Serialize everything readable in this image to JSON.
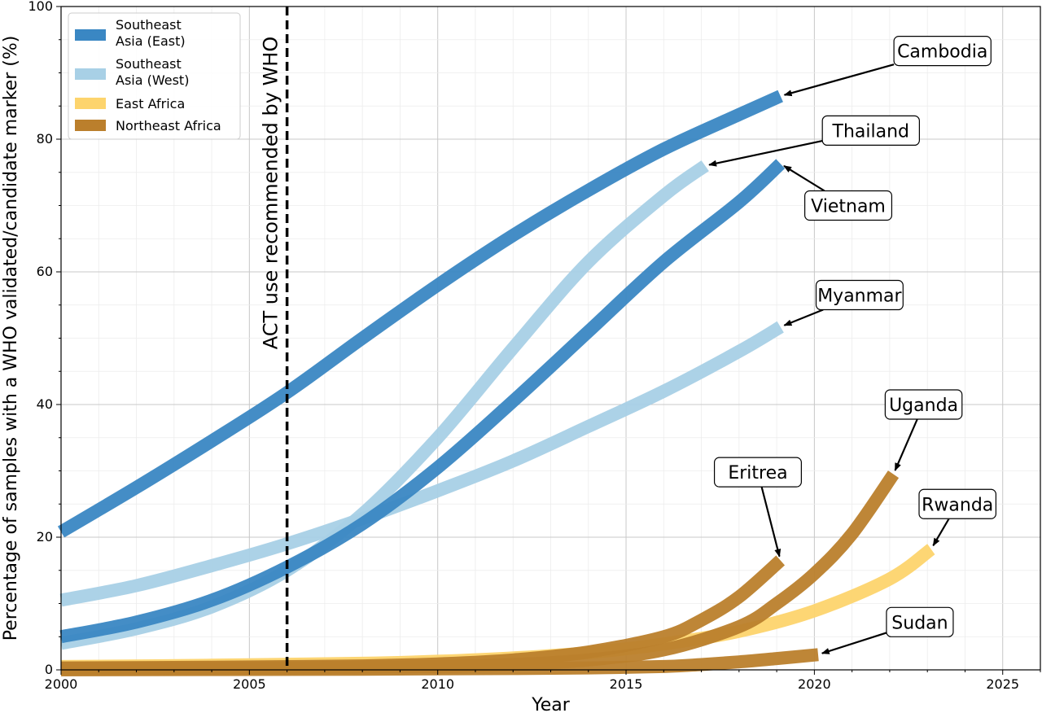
{
  "chart_data": {
    "type": "line",
    "xlabel": "Year",
    "ylabel": "Percentage of samples with a WHO validated/candidate marker (%)",
    "xlim": [
      2000,
      2026
    ],
    "ylim": [
      0,
      100
    ],
    "xticks": [
      2000,
      2005,
      2010,
      2015,
      2020,
      2025
    ],
    "yticks": [
      0,
      20,
      40,
      60,
      80,
      100
    ],
    "grid": true,
    "legend_placement": "top-left",
    "vertical_line": {
      "x": 2006,
      "label": "ACT use recommended by WHO",
      "style": "dashed"
    },
    "legend": [
      {
        "label": "Southeast\nAsia (East)",
        "color": "#3a87c3"
      },
      {
        "label": "Southeast\nAsia (West)",
        "color": "#a8d0e6"
      },
      {
        "label": "East Africa",
        "color": "#fdd46d"
      },
      {
        "label": "Northeast Africa",
        "color": "#bb7f2c"
      }
    ],
    "series": [
      {
        "name": "Cambodia",
        "region": "Southeast Asia (East)",
        "color": "#3a87c3",
        "x": [
          2000,
          2002,
          2004,
          2006,
          2008,
          2010,
          2012,
          2014,
          2016,
          2018,
          2019.1
        ],
        "y": [
          20.8,
          27.5,
          34.5,
          41.8,
          50.0,
          58.0,
          65.5,
          72.3,
          78.5,
          83.7,
          86.5
        ],
        "annotation": {
          "text": "Cambodia",
          "label_x": 2023.4,
          "label_y": 93.3
        }
      },
      {
        "name": "Vietnam",
        "region": "Southeast Asia (East)",
        "color": "#3a87c3",
        "x": [
          2000,
          2002,
          2004,
          2006,
          2008,
          2010,
          2012,
          2014,
          2016,
          2018,
          2019.1
        ],
        "y": [
          5.0,
          7.2,
          10.5,
          15.5,
          22.0,
          30.5,
          40.5,
          51.0,
          61.5,
          70.5,
          76.3
        ],
        "annotation": {
          "text": "Vietnam",
          "label_x": 2020.9,
          "label_y": 70.0
        }
      },
      {
        "name": "Thailand",
        "region": "Southeast Asia (West)",
        "color": "#a8d0e6",
        "x": [
          2000,
          2002,
          2004,
          2006,
          2008,
          2010,
          2012,
          2014,
          2016,
          2017.1
        ],
        "y": [
          4.0,
          6.2,
          9.5,
          15.0,
          23.5,
          35.0,
          48.5,
          61.5,
          71.5,
          76.0
        ],
        "annotation": {
          "text": "Thailand",
          "label_x": 2021.5,
          "label_y": 81.3
        }
      },
      {
        "name": "Myanmar",
        "region": "Southeast Asia (West)",
        "color": "#a8d0e6",
        "x": [
          2000,
          2002,
          2004,
          2006,
          2008,
          2010,
          2012,
          2014,
          2016,
          2018,
          2019.1
        ],
        "y": [
          10.5,
          12.7,
          15.7,
          19.0,
          22.8,
          27.0,
          31.5,
          36.7,
          42.0,
          48.0,
          51.7
        ],
        "annotation": {
          "text": "Myanmar",
          "label_x": 2021.2,
          "label_y": 56.5
        }
      },
      {
        "name": "Rwanda",
        "region": "East Africa",
        "color": "#fdd46d",
        "x": [
          2000,
          2004,
          2008,
          2010,
          2012,
          2014,
          2016,
          2018,
          2020,
          2022,
          2023.1
        ],
        "y": [
          0.5,
          0.7,
          1.0,
          1.3,
          1.8,
          2.6,
          3.9,
          5.8,
          8.9,
          13.7,
          18.2
        ],
        "annotation": {
          "text": "Rwanda",
          "label_x": 2023.8,
          "label_y": 25.0
        }
      },
      {
        "name": "Eritrea",
        "region": "Northeast Africa",
        "color": "#bb7f2c",
        "x": [
          2000,
          2004,
          2008,
          2010,
          2012,
          2014,
          2016,
          2017,
          2018,
          2019.1
        ],
        "y": [
          0.3,
          0.4,
          0.6,
          0.9,
          1.5,
          2.7,
          5.0,
          7.5,
          11.0,
          16.5
        ],
        "annotation": {
          "text": "Eritrea",
          "label_x": 2018.5,
          "label_y": 29.8
        }
      },
      {
        "name": "Uganda",
        "region": "Northeast Africa",
        "color": "#bb7f2c",
        "x": [
          2000,
          2006,
          2010,
          2012,
          2014,
          2016,
          2018,
          2019,
          2020,
          2021,
          2022.1
        ],
        "y": [
          0.2,
          0.3,
          0.5,
          0.8,
          1.5,
          3.0,
          6.5,
          10.0,
          14.5,
          20.5,
          29.5
        ],
        "annotation": {
          "text": "Uganda",
          "label_x": 2022.9,
          "label_y": 40.0
        }
      },
      {
        "name": "Sudan",
        "region": "Northeast Africa",
        "color": "#bb7f2c",
        "x": [
          2000,
          2008,
          2012,
          2014,
          2016,
          2017,
          2018,
          2019,
          2020.1
        ],
        "y": [
          0.0,
          0.1,
          0.2,
          0.3,
          0.5,
          0.8,
          1.2,
          1.7,
          2.3
        ],
        "annotation": {
          "text": "Sudan",
          "label_x": 2022.8,
          "label_y": 7.2
        }
      }
    ]
  }
}
